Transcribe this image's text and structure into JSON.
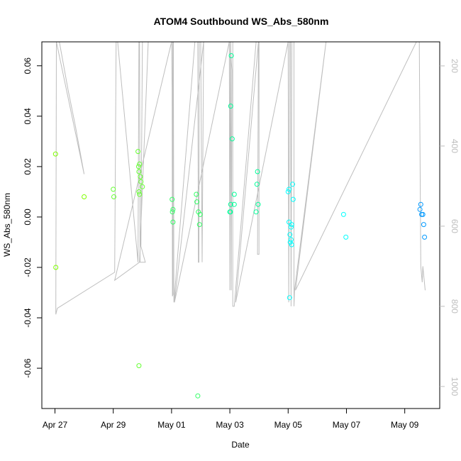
{
  "chart_data": {
    "type": "scatter",
    "title": "ATOM4 Southbound WS_Abs_580nm",
    "xlabel": "Date",
    "ylabel": "WS_Abs_580nm",
    "x_unit": "days after Apr 27",
    "x_ticks": [
      {
        "label": "Apr 27",
        "value": 0
      },
      {
        "label": "Apr 29",
        "value": 2
      },
      {
        "label": "May 01",
        "value": 4
      },
      {
        "label": "May 03",
        "value": 6
      },
      {
        "label": "May 05",
        "value": 8
      },
      {
        "label": "May 07",
        "value": 10
      },
      {
        "label": "May 09",
        "value": 12
      }
    ],
    "xlim": [
      -0.45,
      13.2
    ],
    "y_ticks": [
      -0.06,
      -0.04,
      -0.02,
      0.0,
      0.02,
      0.04,
      0.06
    ],
    "y_tick_labels": [
      "-0.06",
      "-0.04",
      "-0.02",
      "0.00",
      "0.02",
      "0.04",
      "0.06"
    ],
    "ylim": [
      -0.076,
      0.0695
    ],
    "secondary_axis": {
      "ticks": [
        200,
        400,
        600,
        800,
        1000
      ],
      "tick_labels": [
        "200",
        "400",
        "600",
        "800",
        "1000"
      ],
      "lim_top": 140,
      "lim_bottom": 1055,
      "color": "#bdbdbd"
    },
    "grid": false,
    "legend": "none",
    "colors": {
      "depth_trace": "#bebebe",
      "points": [
        "#7fff00",
        "#66ff33",
        "#33ff66",
        "#00ff99",
        "#00ffcc",
        "#00ffff",
        "#00ccff",
        "#0099ff"
      ]
    },
    "points": [
      {
        "x": 0.02,
        "y": 0.025,
        "c": 0
      },
      {
        "x": 0.03,
        "y": -0.02,
        "c": 0
      },
      {
        "x": 1.0,
        "y": 0.008,
        "c": 0
      },
      {
        "x": 2.0,
        "y": 0.011,
        "c": 1
      },
      {
        "x": 2.02,
        "y": 0.008,
        "c": 1
      },
      {
        "x": 2.85,
        "y": 0.026,
        "c": 1
      },
      {
        "x": 2.87,
        "y": 0.02,
        "c": 1
      },
      {
        "x": 2.9,
        "y": 0.021,
        "c": 1
      },
      {
        "x": 2.88,
        "y": 0.018,
        "c": 1
      },
      {
        "x": 2.93,
        "y": 0.016,
        "c": 1
      },
      {
        "x": 2.95,
        "y": 0.014,
        "c": 1
      },
      {
        "x": 3.0,
        "y": 0.012,
        "c": 1
      },
      {
        "x": 2.88,
        "y": 0.01,
        "c": 1
      },
      {
        "x": 2.9,
        "y": 0.009,
        "c": 1
      },
      {
        "x": 2.88,
        "y": -0.059,
        "c": 1
      },
      {
        "x": 4.02,
        "y": 0.007,
        "c": 2
      },
      {
        "x": 4.05,
        "y": 0.003,
        "c": 2
      },
      {
        "x": 4.03,
        "y": 0.002,
        "c": 2
      },
      {
        "x": 4.05,
        "y": -0.002,
        "c": 2
      },
      {
        "x": 4.85,
        "y": 0.009,
        "c": 2
      },
      {
        "x": 4.87,
        "y": 0.006,
        "c": 2
      },
      {
        "x": 4.92,
        "y": 0.002,
        "c": 2
      },
      {
        "x": 4.98,
        "y": 0.001,
        "c": 2
      },
      {
        "x": 4.96,
        "y": -0.003,
        "c": 2
      },
      {
        "x": 4.9,
        "y": -0.071,
        "c": 2
      },
      {
        "x": 6.0,
        "y": 0.002,
        "c": 3
      },
      {
        "x": 6.03,
        "y": 0.005,
        "c": 3
      },
      {
        "x": 6.05,
        "y": 0.064,
        "c": 3
      },
      {
        "x": 6.03,
        "y": 0.044,
        "c": 3
      },
      {
        "x": 6.08,
        "y": 0.031,
        "c": 3
      },
      {
        "x": 6.15,
        "y": 0.009,
        "c": 3
      },
      {
        "x": 6.15,
        "y": 0.005,
        "c": 3
      },
      {
        "x": 6.02,
        "y": 0.002,
        "c": 3
      },
      {
        "x": 6.95,
        "y": 0.018,
        "c": 3
      },
      {
        "x": 6.93,
        "y": 0.013,
        "c": 3
      },
      {
        "x": 6.97,
        "y": 0.005,
        "c": 3
      },
      {
        "x": 6.9,
        "y": 0.002,
        "c": 3
      },
      {
        "x": 8.0,
        "y": 0.01,
        "c": 5
      },
      {
        "x": 8.03,
        "y": 0.011,
        "c": 5
      },
      {
        "x": 8.15,
        "y": 0.013,
        "c": 5
      },
      {
        "x": 8.17,
        "y": 0.007,
        "c": 5
      },
      {
        "x": 8.03,
        "y": -0.002,
        "c": 5
      },
      {
        "x": 8.12,
        "y": -0.003,
        "c": 5
      },
      {
        "x": 8.1,
        "y": -0.004,
        "c": 5
      },
      {
        "x": 8.06,
        "y": -0.007,
        "c": 5
      },
      {
        "x": 8.1,
        "y": -0.009,
        "c": 5
      },
      {
        "x": 8.07,
        "y": -0.01,
        "c": 5
      },
      {
        "x": 8.12,
        "y": -0.011,
        "c": 5
      },
      {
        "x": 8.05,
        "y": -0.032,
        "c": 5
      },
      {
        "x": 9.9,
        "y": 0.001,
        "c": 5
      },
      {
        "x": 9.98,
        "y": -0.008,
        "c": 5
      },
      {
        "x": 12.55,
        "y": 0.005,
        "c": 7
      },
      {
        "x": 12.52,
        "y": 0.003,
        "c": 7
      },
      {
        "x": 12.58,
        "y": 0.001,
        "c": 7
      },
      {
        "x": 12.62,
        "y": 0.001,
        "c": 7
      },
      {
        "x": 12.65,
        "y": -0.003,
        "c": 7
      },
      {
        "x": 12.68,
        "y": -0.008,
        "c": 7
      }
    ],
    "depth_trace": [
      [
        0.05,
        140
      ],
      [
        0.08,
        120
      ],
      [
        0.15,
        140
      ],
      [
        0.25,
        180
      ],
      [
        0.45,
        260
      ],
      [
        0.7,
        350
      ],
      [
        0.9,
        430
      ],
      [
        1.0,
        470
      ],
      [
        0.05,
        140
      ],
      [
        0.03,
        820
      ],
      [
        0.08,
        805
      ],
      [
        2.05,
        715
      ],
      [
        2.1,
        120
      ],
      [
        2.15,
        140
      ],
      [
        2.85,
        690
      ],
      [
        2.88,
        140
      ],
      [
        2.9,
        140
      ],
      [
        2.92,
        690
      ],
      [
        3.1,
        690
      ],
      [
        2.95,
        650
      ],
      [
        3.0,
        140
      ],
      [
        3.2,
        140
      ],
      [
        2.9,
        690
      ],
      [
        2.05,
        735
      ],
      [
        4.0,
        140
      ],
      [
        4.02,
        260
      ],
      [
        4.03,
        775
      ],
      [
        4.05,
        770
      ],
      [
        4.04,
        140
      ],
      [
        4.06,
        140
      ],
      [
        4.08,
        790
      ],
      [
        4.8,
        140
      ],
      [
        4.85,
        120
      ],
      [
        4.9,
        140
      ],
      [
        4.92,
        690
      ],
      [
        4.94,
        690
      ],
      [
        4.95,
        140
      ],
      [
        5.0,
        140
      ],
      [
        5.05,
        690
      ],
      [
        5.1,
        140
      ],
      [
        4.1,
        790
      ],
      [
        5.98,
        140
      ],
      [
        6.0,
        760
      ],
      [
        6.02,
        140
      ],
      [
        6.05,
        190
      ],
      [
        6.07,
        210
      ],
      [
        6.05,
        760
      ],
      [
        6.03,
        140
      ],
      [
        6.1,
        140
      ],
      [
        6.1,
        800
      ],
      [
        6.15,
        800
      ],
      [
        6.9,
        140
      ],
      [
        7.0,
        140
      ],
      [
        7.0,
        670
      ],
      [
        6.95,
        670
      ],
      [
        6.98,
        140
      ],
      [
        6.2,
        790
      ],
      [
        8.0,
        140
      ],
      [
        8.02,
        790
      ],
      [
        8.05,
        140
      ],
      [
        8.08,
        140
      ],
      [
        8.1,
        800
      ],
      [
        8.13,
        140
      ],
      [
        8.2,
        140
      ],
      [
        8.2,
        800
      ],
      [
        8.22,
        760
      ],
      [
        9.3,
        140
      ],
      [
        8.25,
        760
      ],
      [
        12.4,
        140
      ],
      [
        12.5,
        140
      ],
      [
        12.55,
        700
      ],
      [
        12.6,
        740
      ],
      [
        12.62,
        700
      ],
      [
        12.7,
        760
      ]
    ]
  }
}
